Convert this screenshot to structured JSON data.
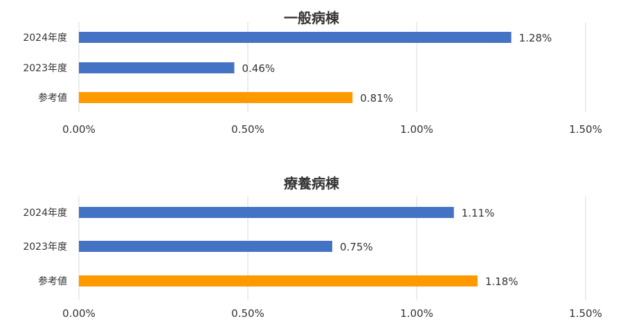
{
  "chart_data": [
    {
      "type": "bar",
      "orientation": "horizontal",
      "title": "一般病棟",
      "categories": [
        "2024年度",
        "2023年度",
        "参考値"
      ],
      "values": [
        1.28,
        0.46,
        0.81
      ],
      "value_labels": [
        "1.28%",
        "0.46%",
        "0.81%"
      ],
      "colors": [
        "#4472C4",
        "#4472C4",
        "#FF9900"
      ],
      "xlim": [
        0,
        1.5
      ],
      "x_ticks": [
        0,
        0.5,
        1.0,
        1.5
      ],
      "x_tick_labels": [
        "0.00%",
        "0.50%",
        "1.00%",
        "1.50%"
      ],
      "grid": true
    },
    {
      "type": "bar",
      "orientation": "horizontal",
      "title": "療養病棟",
      "categories": [
        "2024年度",
        "2023年度",
        "参考値"
      ],
      "values": [
        1.11,
        0.75,
        1.18
      ],
      "value_labels": [
        "1.11%",
        "0.75%",
        "1.18%"
      ],
      "colors": [
        "#4472C4",
        "#4472C4",
        "#FF9900"
      ],
      "xlim": [
        0,
        1.5
      ],
      "x_ticks": [
        0,
        0.5,
        1.0,
        1.5
      ],
      "x_tick_labels": [
        "0.00%",
        "0.50%",
        "1.00%",
        "1.50%"
      ],
      "grid": true
    }
  ]
}
